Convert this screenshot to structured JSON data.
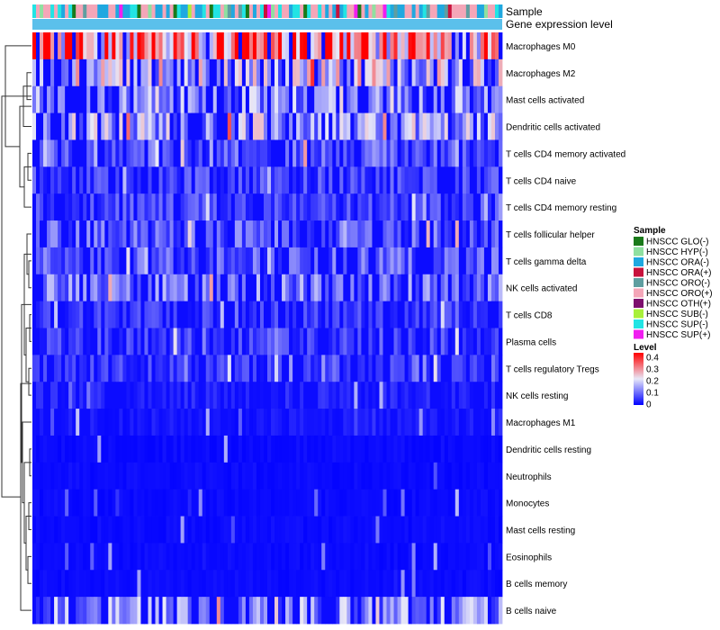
{
  "chart_data": {
    "type": "heatmap",
    "title": "",
    "annotation_labels": {
      "sample": "Sample",
      "expression": "Gene expression level"
    },
    "rows": [
      "Macrophages M0",
      "Macrophages M2",
      "Mast cells activated",
      "Dendritic cells activated",
      "T cells CD4 memory activated",
      "T cells CD4 naive",
      "T cells CD4 memory resting",
      "T cells follicular helper",
      "T cells gamma delta",
      "NK cells activated",
      "T cells CD8",
      "Plasma cells",
      "T cells regulatory  Tregs",
      "NK cells resting",
      "Macrophages M1",
      "Dendritic cells resting",
      "Neutrophils",
      "Monocytes",
      "Mast cells resting",
      "Eosinophils",
      "B cells memory",
      "B cells naive"
    ],
    "row_mean_level": [
      0.3,
      0.17,
      0.12,
      0.14,
      0.08,
      0.06,
      0.06,
      0.08,
      0.08,
      0.1,
      0.05,
      0.06,
      0.05,
      0.03,
      0.02,
      0.01,
      0.01,
      0.01,
      0.01,
      0.01,
      0.01,
      0.12
    ],
    "n_samples": 130,
    "sample_legend": {
      "title": "Sample",
      "items": [
        {
          "label": "HNSCC GLO(-)",
          "color": "#1a7a1a"
        },
        {
          "label": "HNSCC HYP(-)",
          "color": "#8fe0a0"
        },
        {
          "label": "HNSCC ORA(-)",
          "color": "#1fa8e0"
        },
        {
          "label": "HNSCC ORA(+)",
          "color": "#c8123c"
        },
        {
          "label": "HNSCC ORO(-)",
          "color": "#5f9ea0"
        },
        {
          "label": "HNSCC ORO(+)",
          "color": "#f4a6b8"
        },
        {
          "label": "HNSCC OTH(+)",
          "color": "#7d0f6d"
        },
        {
          "label": "HNSCC SUB(-)",
          "color": "#a8f03a"
        },
        {
          "label": "HNSCC SUP(-)",
          "color": "#22e4e4"
        },
        {
          "label": "HNSCC SUP(+)",
          "color": "#f01ef0"
        }
      ]
    },
    "level_legend": {
      "title": "Level",
      "ticks": [
        "0.4",
        "0.3",
        "0.2",
        "0.1",
        "0"
      ],
      "range": [
        0,
        0.4
      ],
      "colors": [
        "#0000ff",
        "#e8e8f8",
        "#ff0000"
      ]
    },
    "expression_bar_color": "#5bc0eb"
  }
}
